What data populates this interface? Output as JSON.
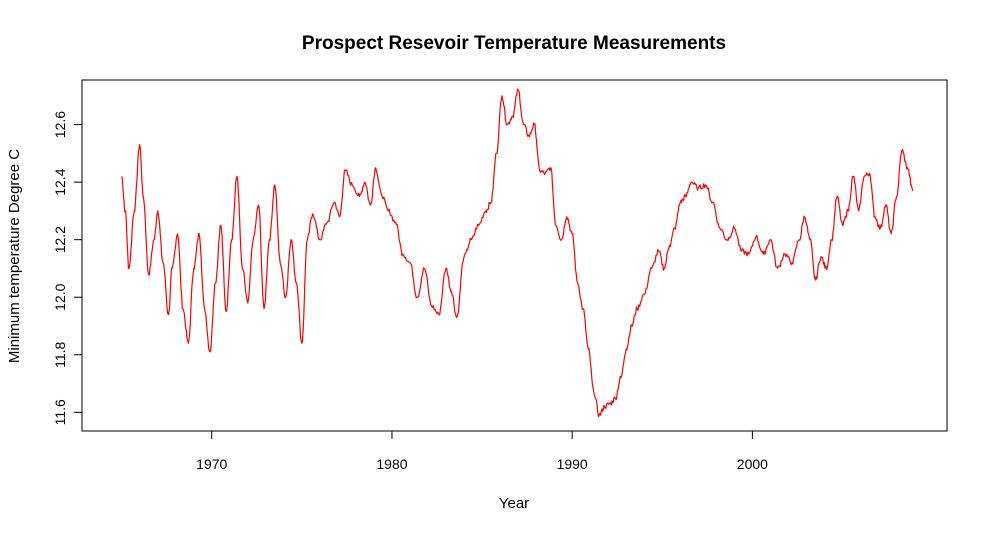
{
  "chart_data": {
    "type": "line",
    "title": "Prospect Resevoir Temperature Measurements",
    "xlabel": "Year",
    "ylabel": "Minimum temperature Degree C",
    "xlim": [
      1962.8,
      2010.8
    ],
    "ylim": [
      11.535,
      12.755
    ],
    "x_ticks": [
      1970,
      1980,
      1990,
      2000
    ],
    "y_ticks": [
      11.6,
      11.8,
      12.0,
      12.2,
      12.4,
      12.6
    ],
    "x_tick_labels": [
      "1970",
      "1980",
      "1990",
      "2000"
    ],
    "y_tick_labels": [
      "11.6",
      "11.8",
      "12.0",
      "12.2",
      "12.4",
      "12.6"
    ],
    "grid": false,
    "legend": "none",
    "series": [
      {
        "color": "#ff0000",
        "x": [
          1965.0,
          1965.2,
          1965.4,
          1965.7,
          1966.0,
          1966.2,
          1966.5,
          1966.8,
          1967.0,
          1967.3,
          1967.6,
          1967.8,
          1968.1,
          1968.4,
          1968.7,
          1969.0,
          1969.3,
          1969.6,
          1969.9,
          1970.2,
          1970.5,
          1970.8,
          1971.1,
          1971.4,
          1971.7,
          1972.0,
          1972.3,
          1972.6,
          1972.9,
          1973.2,
          1973.5,
          1973.8,
          1974.1,
          1974.4,
          1974.7,
          1975.0,
          1975.3,
          1975.6,
          1976.0,
          1976.4,
          1976.8,
          1977.1,
          1977.4,
          1977.8,
          1978.2,
          1978.5,
          1978.8,
          1979.1,
          1979.4,
          1979.8,
          1980.2,
          1980.6,
          1981.0,
          1981.4,
          1981.8,
          1982.2,
          1982.6,
          1983.0,
          1983.3,
          1983.6,
          1984.0,
          1984.4,
          1984.8,
          1985.2,
          1985.5,
          1985.8,
          1986.1,
          1986.4,
          1986.7,
          1987.0,
          1987.3,
          1987.6,
          1987.9,
          1988.2,
          1988.5,
          1988.8,
          1989.1,
          1989.4,
          1989.7,
          1990.0,
          1990.3,
          1990.6,
          1990.9,
          1991.2,
          1991.5,
          1991.8,
          1992.1,
          1992.4,
          1992.7,
          1993.0,
          1993.3,
          1993.6,
          1994.0,
          1994.4,
          1994.8,
          1995.1,
          1995.4,
          1995.7,
          1996.0,
          1996.3,
          1996.6,
          1997.0,
          1997.4,
          1997.8,
          1998.2,
          1998.6,
          1999.0,
          1999.4,
          1999.8,
          2000.2,
          2000.6,
          2001.0,
          2001.4,
          2001.8,
          2002.2,
          2002.6,
          2002.9,
          2003.2,
          2003.5,
          2003.8,
          2004.1,
          2004.4,
          2004.7,
          2005.0,
          2005.3,
          2005.6,
          2005.9,
          2006.2,
          2006.5,
          2006.8,
          2007.1,
          2007.4,
          2007.7,
          2008.0,
          2008.3,
          2008.6,
          2008.9
        ],
        "values": [
          12.42,
          12.3,
          12.1,
          12.3,
          12.53,
          12.35,
          12.08,
          12.2,
          12.3,
          12.12,
          11.94,
          12.1,
          12.22,
          11.96,
          11.84,
          12.1,
          12.22,
          11.96,
          11.81,
          12.05,
          12.25,
          11.95,
          12.2,
          12.42,
          12.1,
          11.98,
          12.2,
          12.32,
          11.96,
          12.2,
          12.39,
          12.12,
          12.0,
          12.2,
          12.05,
          11.84,
          12.2,
          12.29,
          12.2,
          12.26,
          12.33,
          12.28,
          12.44,
          12.39,
          12.35,
          12.4,
          12.32,
          12.45,
          12.36,
          12.3,
          12.26,
          12.15,
          12.12,
          12.0,
          12.1,
          11.97,
          11.94,
          12.1,
          12.02,
          11.93,
          12.14,
          12.2,
          12.25,
          12.3,
          12.33,
          12.5,
          12.7,
          12.6,
          12.63,
          12.72,
          12.6,
          12.56,
          12.6,
          12.44,
          12.43,
          12.45,
          12.25,
          12.2,
          12.28,
          12.22,
          12.05,
          11.96,
          11.82,
          11.67,
          11.59,
          11.62,
          11.63,
          11.65,
          11.72,
          11.82,
          11.9,
          11.96,
          12.01,
          12.1,
          12.16,
          12.1,
          12.18,
          12.24,
          12.33,
          12.35,
          12.4,
          12.38,
          12.39,
          12.33,
          12.24,
          12.2,
          12.24,
          12.16,
          12.15,
          12.21,
          12.15,
          12.2,
          12.1,
          12.15,
          12.12,
          12.2,
          12.28,
          12.2,
          12.06,
          12.14,
          12.1,
          12.2,
          12.35,
          12.25,
          12.3,
          12.42,
          12.3,
          12.42,
          12.43,
          12.28,
          12.24,
          12.32,
          12.22,
          12.35,
          12.51,
          12.45,
          12.37
        ]
      }
    ]
  }
}
